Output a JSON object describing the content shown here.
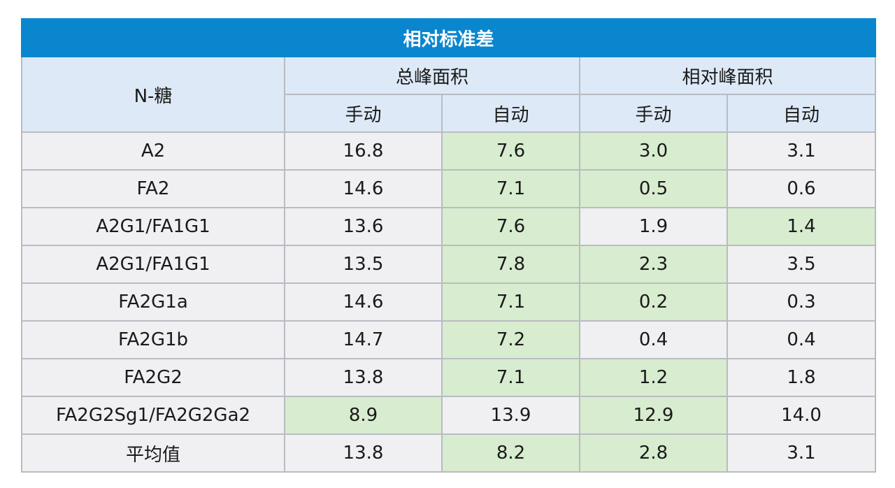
{
  "chart_data": {
    "type": "table",
    "title": "相对标准差",
    "columns": {
      "row_header": "N-糖",
      "groups": [
        {
          "label": "总峰面积",
          "sub": [
            "手动",
            "自动"
          ]
        },
        {
          "label": "相对峰面积",
          "sub": [
            "手动",
            "自动"
          ]
        }
      ]
    },
    "rows": [
      {
        "name": "A2",
        "values": [
          "16.8",
          "7.6",
          "3.0",
          "3.1"
        ],
        "highlight": [
          false,
          true,
          true,
          false
        ]
      },
      {
        "name": "FA2",
        "values": [
          "14.6",
          "7.1",
          "0.5",
          "0.6"
        ],
        "highlight": [
          false,
          true,
          true,
          false
        ]
      },
      {
        "name": "A2G1/FA1G1",
        "values": [
          "13.6",
          "7.6",
          "1.9",
          "1.4"
        ],
        "highlight": [
          false,
          true,
          false,
          true
        ]
      },
      {
        "name": "A2G1/FA1G1",
        "values": [
          "13.5",
          "7.8",
          "2.3",
          "3.5"
        ],
        "highlight": [
          false,
          true,
          true,
          false
        ]
      },
      {
        "name": "FA2G1a",
        "values": [
          "14.6",
          "7.1",
          "0.2",
          "0.3"
        ],
        "highlight": [
          false,
          true,
          true,
          false
        ]
      },
      {
        "name": "FA2G1b",
        "values": [
          "14.7",
          "7.2",
          "0.4",
          "0.4"
        ],
        "highlight": [
          false,
          true,
          false,
          false
        ]
      },
      {
        "name": "FA2G2",
        "values": [
          "13.8",
          "7.1",
          "1.2",
          "1.8"
        ],
        "highlight": [
          false,
          true,
          true,
          false
        ]
      },
      {
        "name": "FA2G2Sg1/FA2G2Ga2",
        "values": [
          "8.9",
          "13.9",
          "12.9",
          "14.0"
        ],
        "highlight": [
          true,
          false,
          true,
          false
        ]
      },
      {
        "name": "平均值",
        "values": [
          "13.8",
          "8.2",
          "2.8",
          "3.1"
        ],
        "highlight": [
          false,
          true,
          true,
          false
        ]
      }
    ]
  },
  "colors": {
    "title_bg": "#0a86cf",
    "header_bg": "#dde9f6",
    "cell_bg": "#f0f0f3",
    "highlight_bg": "#d8eccf",
    "border": "#b8bcc2"
  }
}
